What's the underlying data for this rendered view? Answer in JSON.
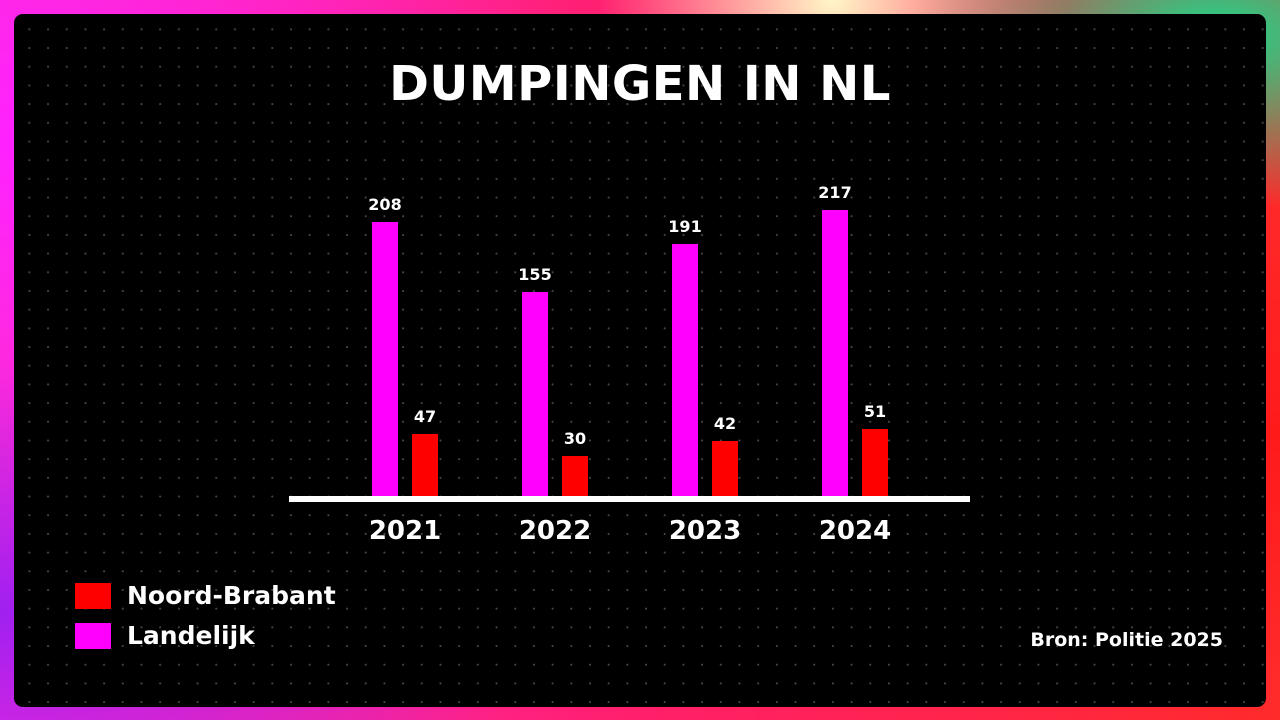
{
  "title": "DUMPINGEN IN NL",
  "source": "Bron: Politie 2025",
  "colors": {
    "landelijk": "#ff00ff",
    "noord_brabant": "#ff0000",
    "panel_background": "#000000",
    "text": "#ffffff"
  },
  "legend": [
    {
      "label": "Noord-Brabant",
      "color": "#ff0000"
    },
    {
      "label": "Landelijk",
      "color": "#ff00ff"
    }
  ],
  "years": [
    "2021",
    "2022",
    "2023",
    "2024"
  ],
  "labels": {
    "landelijk": [
      "208",
      "155",
      "191",
      "217"
    ],
    "noord_brabant": [
      "47",
      "30",
      "42",
      "51"
    ]
  },
  "chart_data": {
    "type": "bar",
    "title": "DUMPINGEN IN NL",
    "categories": [
      "2021",
      "2022",
      "2023",
      "2024"
    ],
    "series": [
      {
        "name": "Landelijk",
        "color": "#ff00ff",
        "values": [
          208,
          155,
          191,
          217
        ]
      },
      {
        "name": "Noord-Brabant",
        "color": "#ff0000",
        "values": [
          47,
          30,
          42,
          51
        ]
      }
    ],
    "xlabel": "",
    "ylabel": "",
    "ylim": [
      0,
      217
    ],
    "grid": false,
    "data_labels": true,
    "legend_position": "bottom-left",
    "annotations": [
      "Bron: Politie 2025"
    ]
  }
}
